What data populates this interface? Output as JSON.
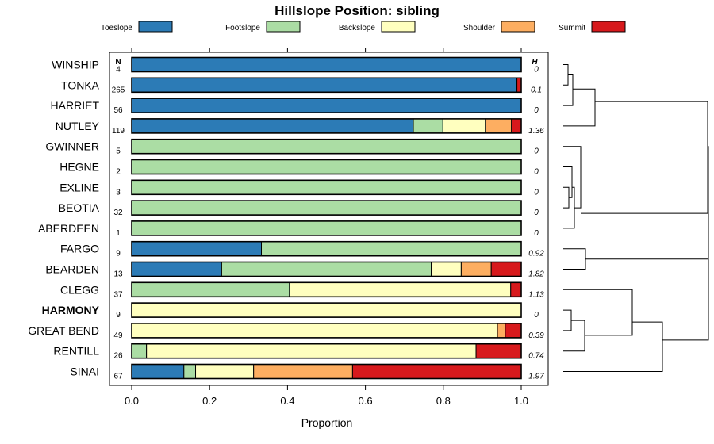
{
  "chart_data": {
    "type": "bar",
    "orientation": "horizontal",
    "stacked": true,
    "title": "Hillslope Position: sibling",
    "xlabel": "Proportion",
    "xlim": [
      0,
      1
    ],
    "xticks": [
      "0.0",
      "0.2",
      "0.4",
      "0.6",
      "0.8",
      "1.0"
    ],
    "n_header": "N",
    "h_header": "H",
    "legend": [
      {
        "name": "Toeslope",
        "color": "#2c7bb6"
      },
      {
        "name": "Footslope",
        "color": "#abdda4"
      },
      {
        "name": "Backslope",
        "color": "#ffffbf"
      },
      {
        "name": "Shoulder",
        "color": "#fdae61"
      },
      {
        "name": "Summit",
        "color": "#d7191c"
      }
    ],
    "categories": [
      "WINSHIP",
      "TONKA",
      "HARRIET",
      "NUTLEY",
      "GWINNER",
      "HEGNE",
      "EXLINE",
      "BEOTIA",
      "ABERDEEN",
      "FARGO",
      "BEARDEN",
      "CLEGG",
      "HARMONY",
      "GREAT BEND",
      "RENTILL",
      "SINAI"
    ],
    "highlight": "HARMONY",
    "n": [
      "4",
      "265",
      "56",
      "119",
      "5",
      "2",
      "3",
      "32",
      "1",
      "9",
      "13",
      "37",
      "9",
      "49",
      "26",
      "67"
    ],
    "h": [
      "0",
      "0.1",
      "0",
      "1.36",
      "0",
      "0",
      "0",
      "0",
      "0",
      "0.92",
      "1.82",
      "1.13",
      "0",
      "0.39",
      "0.74",
      "1.97"
    ],
    "series": [
      {
        "name": "Toeslope",
        "values": [
          1.0,
          0.989,
          1.0,
          0.723,
          0,
          0,
          0,
          0,
          0,
          0.333,
          0.231,
          0,
          0,
          0,
          0,
          0.134
        ]
      },
      {
        "name": "Footslope",
        "values": [
          0,
          0,
          0,
          0.076,
          1.0,
          1.0,
          1.0,
          1.0,
          1.0,
          0.667,
          0.538,
          0.405,
          0,
          0,
          0.038,
          0.03
        ]
      },
      {
        "name": "Backslope",
        "values": [
          0,
          0,
          0,
          0.109,
          0,
          0,
          0,
          0,
          0,
          0,
          0.077,
          0.568,
          1.0,
          0.939,
          0.846,
          0.149
        ]
      },
      {
        "name": "Shoulder",
        "values": [
          0,
          0,
          0,
          0.067,
          0,
          0,
          0,
          0,
          0,
          0,
          0.077,
          0,
          0,
          0.02,
          0,
          0.254
        ]
      },
      {
        "name": "Summit",
        "values": [
          0,
          0.011,
          0,
          0.025,
          0,
          0,
          0,
          0,
          0,
          0,
          0.077,
          0.027,
          0,
          0.041,
          0.116,
          0.433
        ]
      }
    ]
  }
}
